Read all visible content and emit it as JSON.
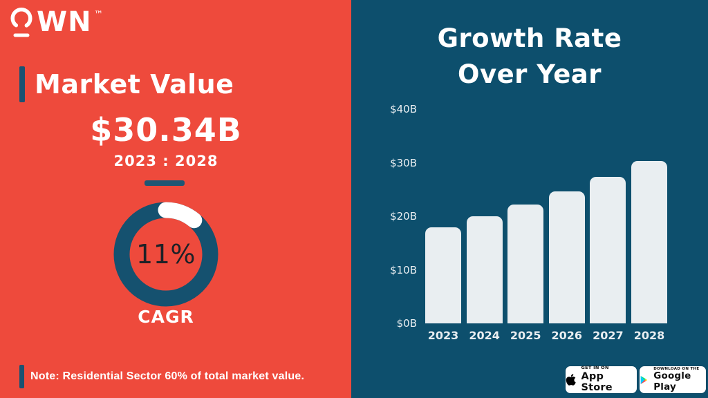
{
  "colors": {
    "left_bg": "#ee4a3c",
    "right_bg": "#0d4f6d",
    "accent_navy": "#1a5272",
    "bar_fill": "#e9eef1",
    "donut_ring": "#15516f",
    "donut_progress": "#ffffff"
  },
  "logo": {
    "text": "WN",
    "tm": "™"
  },
  "left": {
    "heading": "Market Value",
    "amount": "$30.34B",
    "range": "2023 : 2028",
    "donut": {
      "value_label": "11%",
      "percent": 11,
      "caption": "CAGR"
    },
    "note": "Note: Residential Sector 60% of total market value."
  },
  "right": {
    "title1": "Growth Rate",
    "title2": "Over Year"
  },
  "badges": {
    "apple": {
      "tagline": "GET IN ON",
      "store": "App Store"
    },
    "google": {
      "tagline": "DOWNLOAD ON THE",
      "store": "Google Play"
    }
  },
  "chart_data": {
    "type": "bar",
    "title": "Growth Rate Over Year",
    "categories": [
      "2023",
      "2024",
      "2025",
      "2026",
      "2027",
      "2028"
    ],
    "values": [
      18,
      20,
      22.2,
      24.6,
      27.3,
      30.34
    ],
    "unit": "USD billions",
    "xlabel": "",
    "ylabel": "",
    "ylim": [
      0,
      40
    ],
    "y_ticks": [
      {
        "v": 0,
        "label": "$0B"
      },
      {
        "v": 10,
        "label": "$10B"
      },
      {
        "v": 20,
        "label": "$20B"
      },
      {
        "v": 30,
        "label": "$30B"
      },
      {
        "v": 40,
        "label": "$40B"
      }
    ],
    "grid": false,
    "legend": "none",
    "bar_color": "#e9eef1"
  }
}
